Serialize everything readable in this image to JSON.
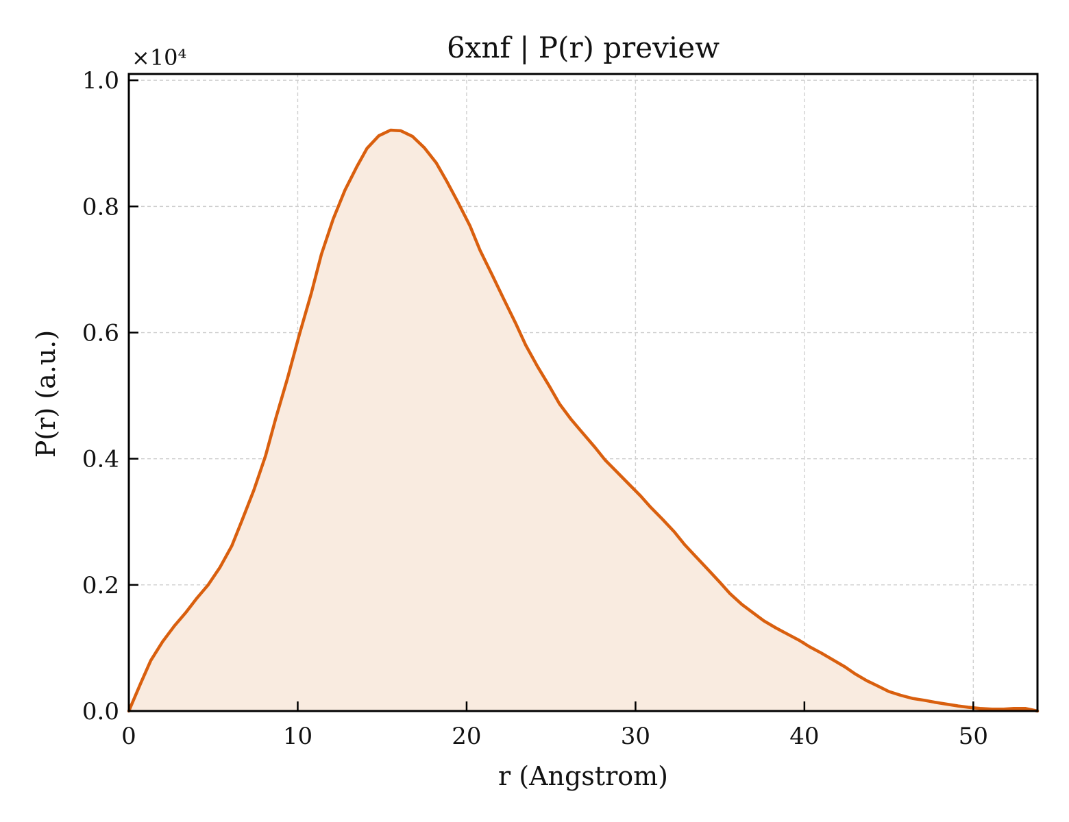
{
  "chart_data": {
    "type": "area",
    "title": "6xnf | P(r) preview",
    "xlabel": "r (Angstrom)",
    "ylabel": "P(r) (a.u.)",
    "y_multiplier_label": "×10⁴",
    "xlim": [
      0,
      53.8
    ],
    "ylim": [
      0,
      1.01
    ],
    "x_ticks": [
      0,
      10,
      20,
      30,
      40,
      50
    ],
    "y_ticks": [
      0.0,
      0.2,
      0.4,
      0.6,
      0.8,
      1.0
    ],
    "x_tick_labels": [
      "0",
      "10",
      "20",
      "30",
      "40",
      "50"
    ],
    "y_tick_labels": [
      "0.0",
      "0.2",
      "0.4",
      "0.6",
      "0.8",
      "1.0"
    ],
    "grid": true,
    "line_color": "#d95f0e",
    "fill_color": "#f9ebe0",
    "series": [
      {
        "x": [
          0,
          0.7,
          1.3,
          2.0,
          2.7,
          3.4,
          4.0,
          4.7,
          5.4,
          6.1,
          6.7,
          7.4,
          8.1,
          8.7,
          9.4,
          10.1,
          10.8,
          11.4,
          12.1,
          12.8,
          13.5,
          14.1,
          14.8,
          15.5,
          16.1,
          16.8,
          17.5,
          18.2,
          18.8,
          19.5,
          20.2,
          20.8,
          21.5,
          22.2,
          22.9,
          23.5,
          24.2,
          24.9,
          25.5,
          26.2,
          26.9,
          27.6,
          28.2,
          28.9,
          29.6,
          30.3,
          30.9,
          31.6,
          32.3,
          32.9,
          33.6,
          34.3,
          35.0,
          35.6,
          36.3,
          37.0,
          37.6,
          38.3,
          39.0,
          39.7,
          40.3,
          41.0,
          41.7,
          42.4,
          43.0,
          43.7,
          44.4,
          45.0,
          45.7,
          46.4,
          47.1,
          47.7,
          48.4,
          49.1,
          49.7,
          50.4,
          51.1,
          51.8,
          52.4,
          53.1,
          53.8
        ],
        "y": [
          0.0,
          0.044,
          0.08,
          0.11,
          0.135,
          0.157,
          0.178,
          0.2,
          0.228,
          0.262,
          0.302,
          0.35,
          0.405,
          0.464,
          0.528,
          0.597,
          0.662,
          0.724,
          0.78,
          0.826,
          0.863,
          0.892,
          0.912,
          0.921,
          0.92,
          0.911,
          0.893,
          0.869,
          0.841,
          0.806,
          0.769,
          0.73,
          0.692,
          0.653,
          0.615,
          0.58,
          0.546,
          0.515,
          0.487,
          0.462,
          0.44,
          0.418,
          0.398,
          0.379,
          0.36,
          0.341,
          0.323,
          0.304,
          0.284,
          0.264,
          0.244,
          0.224,
          0.204,
          0.186,
          0.169,
          0.155,
          0.143,
          0.132,
          0.122,
          0.112,
          0.102,
          0.092,
          0.081,
          0.07,
          0.059,
          0.048,
          0.039,
          0.031,
          0.025,
          0.02,
          0.017,
          0.014,
          0.011,
          0.008,
          0.006,
          0.004,
          0.003,
          0.003,
          0.004,
          0.004,
          0.0
        ]
      }
    ]
  }
}
